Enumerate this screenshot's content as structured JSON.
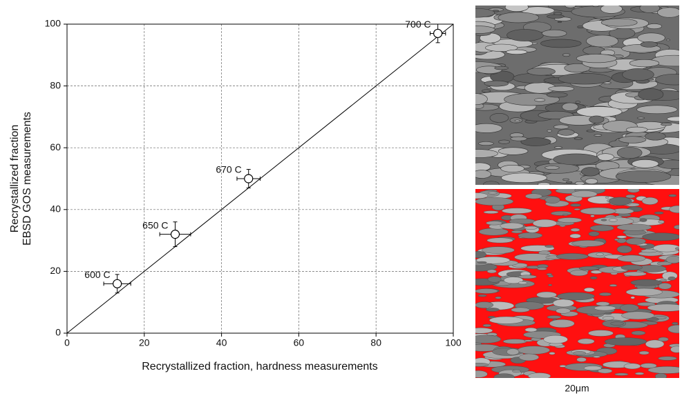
{
  "chart_data": {
    "type": "scatter",
    "x_label": "Recrystallized fraction, hardness measurements",
    "y_label": [
      "Recrystallized fraction",
      "EBSD GOS measurements"
    ],
    "x": [
      13,
      28,
      47,
      96
    ],
    "y": [
      16,
      32,
      50,
      97
    ],
    "xerr": [
      3.5,
      4,
      3,
      2
    ],
    "yerr": [
      3,
      4,
      3,
      3
    ],
    "point_labels": [
      "600  C",
      "650  C",
      "670  C",
      "700  C"
    ],
    "xlim": [
      0,
      100
    ],
    "ylim": [
      0,
      100
    ],
    "xticks": [
      0,
      20,
      40,
      60,
      80,
      100
    ],
    "yticks": [
      0,
      20,
      40,
      60,
      80,
      100
    ],
    "grid": true,
    "identity_line": true,
    "marker_color": "#ffffff"
  },
  "figure": {
    "scale_bar_label": "20μm"
  }
}
